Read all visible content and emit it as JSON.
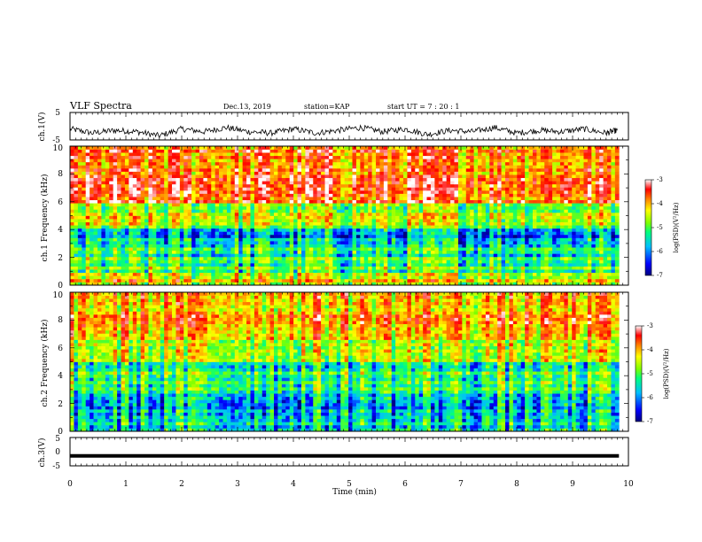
{
  "header": {
    "title": "VLF Spectra",
    "date": "Dec.13, 2019",
    "station": "station=KAP",
    "start_ut": "start UT =  7 : 20 : 1"
  },
  "chart_data": [
    {
      "type": "line",
      "ylabel": "ch.1(V)",
      "x_range": [
        0,
        10
      ],
      "ylim": [
        -5,
        5
      ],
      "y_ticks": [
        "5",
        "-5"
      ],
      "x_ticks": [
        0,
        1,
        2,
        3,
        4,
        5,
        6,
        7,
        8,
        9,
        10
      ],
      "x": [
        0.0,
        0.4,
        0.8,
        1.2,
        1.6,
        2.0,
        2.4,
        2.8,
        3.2,
        3.6,
        4.0,
        4.4,
        4.8,
        5.2,
        5.6,
        6.0,
        6.4,
        6.8,
        7.2,
        7.6,
        8.0,
        8.4,
        8.8,
        9.2,
        9.6,
        9.8
      ],
      "series": [
        {
          "values": [
            -1.0,
            -2.5,
            -1.5,
            -2.0,
            -3.5,
            -1.0,
            -2.0,
            -0.5,
            -2.0,
            -2.5,
            -1.0,
            -2.5,
            -1.5,
            -0.5,
            -2.0,
            -1.0,
            -3.0,
            -1.5,
            -2.0,
            -0.5,
            -2.5,
            -1.5,
            -2.0,
            -1.0,
            -2.5,
            -1.5
          ]
        }
      ]
    },
    {
      "type": "heatmap",
      "ylabel": "ch.1 Frequency (kHz)",
      "x_range": [
        0,
        9.83
      ],
      "ylim": [
        0,
        10
      ],
      "y_ticks": [
        "0",
        "2",
        "4",
        "6",
        "8",
        "10"
      ],
      "colorbar": {
        "label": "log(PSD)(V²/Hz)",
        "range": [
          -7,
          -3
        ],
        "ticks": [
          "-3",
          "-4",
          "-5",
          "-6",
          "-7"
        ]
      },
      "freq_band_levels": [
        {
          "band_khz": [
            0,
            1
          ],
          "level": -4.5
        },
        {
          "band_khz": [
            1,
            2
          ],
          "level": -5.2
        },
        {
          "band_khz": [
            2,
            3
          ],
          "level": -5.5
        },
        {
          "band_khz": [
            3,
            4
          ],
          "level": -6.0
        },
        {
          "band_khz": [
            4,
            6
          ],
          "level": -4.8
        },
        {
          "band_khz": [
            6,
            10
          ],
          "level": -3.8
        }
      ]
    },
    {
      "type": "heatmap",
      "ylabel": "ch.2 Frequency (kHz)",
      "x_range": [
        0,
        9.83
      ],
      "ylim": [
        0,
        10
      ],
      "y_ticks": [
        "0",
        "2",
        "4",
        "6",
        "8",
        "10"
      ],
      "colorbar": {
        "label": "log(PSD)(V²/Hz)",
        "range": [
          -7,
          -3
        ],
        "ticks": [
          "-3",
          "-4",
          "-5",
          "-6",
          "-7"
        ]
      },
      "freq_band_levels": [
        {
          "band_khz": [
            0,
            1
          ],
          "level": -5.8
        },
        {
          "band_khz": [
            1,
            2
          ],
          "level": -6.0
        },
        {
          "band_khz": [
            2,
            3
          ],
          "level": -5.6
        },
        {
          "band_khz": [
            3,
            5
          ],
          "level": -5.4
        },
        {
          "band_khz": [
            5,
            7
          ],
          "level": -4.6
        },
        {
          "band_khz": [
            7,
            10
          ],
          "level": -4.2
        }
      ]
    },
    {
      "type": "line",
      "ylabel": "ch.3(V)",
      "x_range": [
        0,
        9.83
      ],
      "ylim": [
        -5,
        5
      ],
      "y_ticks": [
        "5",
        "0",
        "-5"
      ],
      "x": [
        0,
        9.83
      ],
      "series": [
        {
          "values": [
            -1.5,
            -1.5
          ]
        }
      ]
    }
  ],
  "x_axis": {
    "label": "Time (min)",
    "ticks": [
      "0",
      "1",
      "2",
      "3",
      "4",
      "5",
      "6",
      "7",
      "8",
      "9",
      "10"
    ],
    "range": [
      0,
      10
    ]
  },
  "colors": {
    "ink": "#000000",
    "colormap": [
      "#00007f",
      "#0000ff",
      "#00bfff",
      "#00ff7f",
      "#7fff00",
      "#ffff00",
      "#ff7f00",
      "#ff0000",
      "#ffffff"
    ]
  }
}
